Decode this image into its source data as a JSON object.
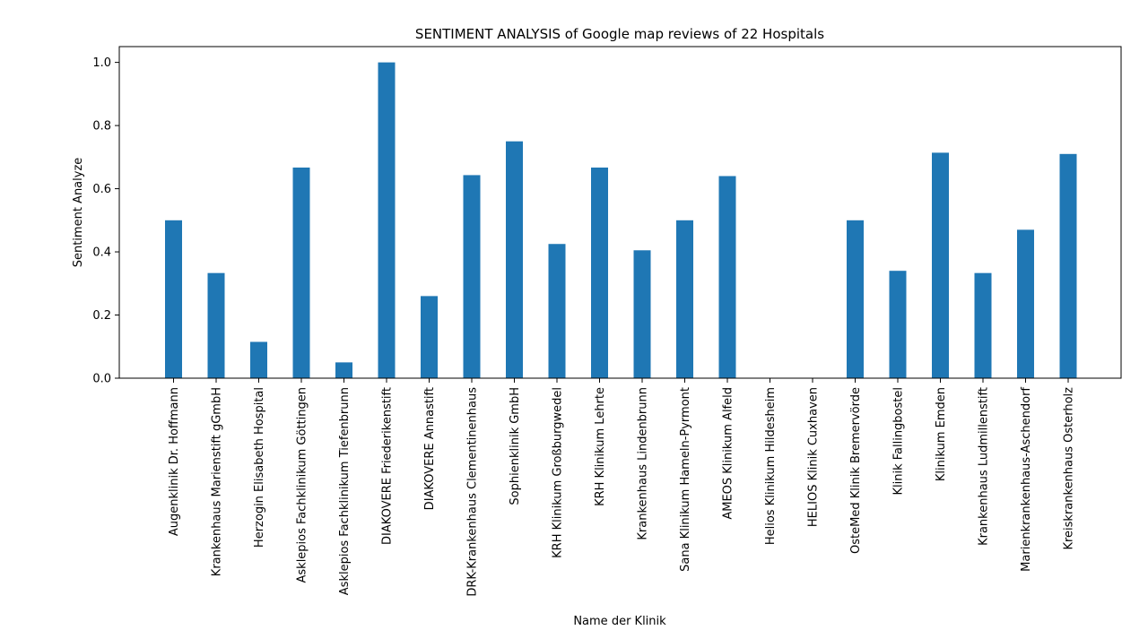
{
  "chart_data": {
    "type": "bar",
    "title": "SENTIMENT ANALYSIS of Google map reviews of 22 Hospitals",
    "xlabel": "Name der Klinik",
    "ylabel": "Sentiment Analyze",
    "ylim": [
      0,
      1.05
    ],
    "yticks": [
      0.0,
      0.2,
      0.4,
      0.6,
      0.8,
      1.0
    ],
    "ytick_labels": [
      "0.0",
      "0.2",
      "0.4",
      "0.6",
      "0.8",
      "1.0"
    ],
    "grid": false,
    "bar_color": "#1f77b4",
    "categories": [
      "Augenklinik Dr. Hoffmann",
      "Krankenhaus Marienstift gGmbH",
      "Herzogin Elisabeth Hospital",
      "Asklepios Fachklinikum Göttingen",
      "Asklepios Fachklinikum Tiefenbrunn",
      "DIAKOVERE Friederikenstift",
      "DIAKOVERE Annastift",
      "DRK-Krankenhaus Clementinenhaus",
      "Sophienklinik GmbH",
      "KRH Klinikum Großburgwedel",
      "KRH Klinikum Lehrte",
      "Krankenhaus Lindenbrunn",
      "Sana Klinikum Hameln-Pyrmont",
      "AMEOS Klinikum Alfeld",
      "Helios Klinikum Hildesheim",
      "HELIOS Klinik Cuxhaven",
      "OsteMed Klinik Bremervörde",
      "Klinik Fallingbostel",
      "Klinikum Emden",
      "Krankenhaus Ludmillenstift",
      "Marienkrankenhaus-Aschendorf",
      "Kreiskrankenhaus Osterholz"
    ],
    "values": [
      0.5,
      0.333,
      0.115,
      0.667,
      0.05,
      1.0,
      0.26,
      0.643,
      0.75,
      0.425,
      0.667,
      0.405,
      0.5,
      0.64,
      0.0,
      0.0,
      0.5,
      0.34,
      0.714,
      0.333,
      0.47,
      0.71
    ]
  }
}
